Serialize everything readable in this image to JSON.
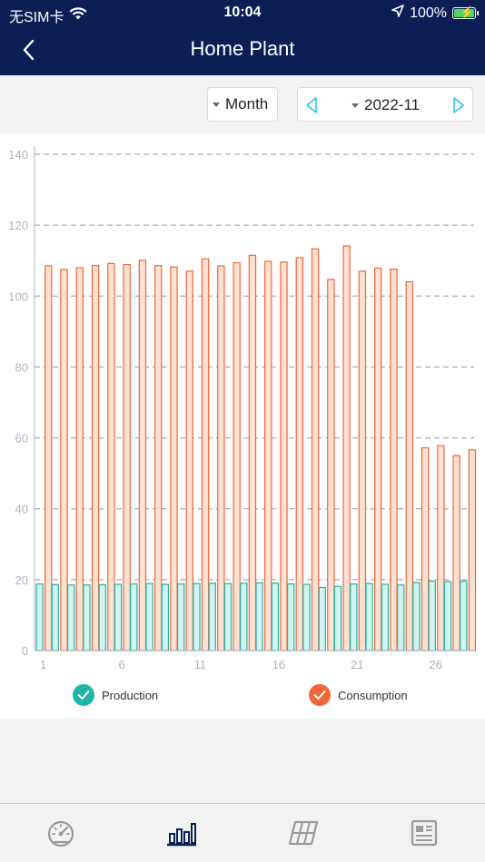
{
  "status_bar": {
    "carrier": "无SIM卡",
    "time": "10:04",
    "battery": "100%"
  },
  "header": {
    "title": "Home Plant"
  },
  "controls": {
    "period": "Month",
    "date": "2022-11"
  },
  "legend": {
    "production": "Production",
    "consumption": "Consumption"
  },
  "colors": {
    "header_bg": "#0b1f55",
    "production": "#1fb5a8",
    "consumption": "#f2663a",
    "accent": "#2ec4e6"
  },
  "chart_data": {
    "type": "bar",
    "categories": [
      "1",
      "2",
      "3",
      "4",
      "5",
      "6",
      "7",
      "8",
      "9",
      "10",
      "11",
      "12",
      "13",
      "14",
      "15",
      "16",
      "17",
      "18",
      "19",
      "20",
      "21",
      "22",
      "23",
      "24",
      "25",
      "26",
      "27",
      "28"
    ],
    "x_tick_labels": [
      "1",
      "6",
      "11",
      "16",
      "21",
      "26"
    ],
    "y_tick_labels": [
      "0",
      "20",
      "40",
      "60",
      "80",
      "100",
      "120",
      "140"
    ],
    "ylim": [
      0,
      140
    ],
    "grid": "horizontal dashed",
    "legend_position": "bottom",
    "series": [
      {
        "name": "Production",
        "values": [
          18.8,
          18.6,
          18.5,
          18.5,
          18.6,
          18.7,
          18.8,
          18.9,
          18.7,
          18.8,
          18.9,
          19.0,
          18.9,
          19.0,
          19.1,
          19.0,
          18.8,
          18.7,
          17.8,
          18.1,
          18.8,
          18.9,
          18.7,
          18.5,
          19.2,
          19.6,
          19.5,
          19.6
        ]
      },
      {
        "name": "Consumption",
        "values": [
          108.5,
          107.5,
          108.0,
          108.6,
          109.2,
          108.9,
          110.1,
          108.6,
          108.2,
          107.0,
          110.5,
          108.5,
          109.4,
          111.5,
          109.8,
          109.6,
          110.8,
          113.3,
          104.7,
          114.1,
          107.0,
          107.9,
          107.6,
          104.0,
          57.2,
          57.8,
          55.0,
          56.6
        ]
      }
    ]
  }
}
